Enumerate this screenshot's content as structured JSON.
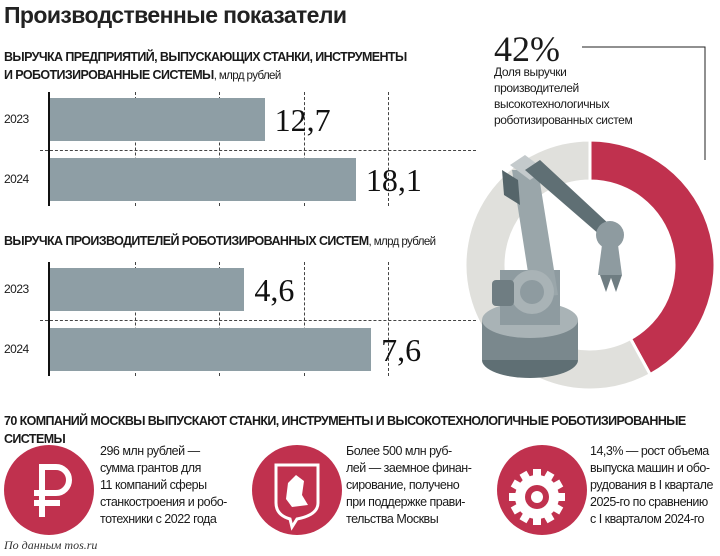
{
  "title": "Производственные показатели",
  "chart_data": [
    {
      "type": "bar",
      "orientation": "horizontal",
      "title": "ВЫРУЧКА ПРЕДПРИЯТИЙ, ВЫПУСКАЮЩИХ СТАНКИ, ИНСТРУМЕНТЫ И РОБОТИЗИРОВАННЫЕ СИСТЕМЫ",
      "title_line1": "ВЫРУЧКА ПРЕДПРИЯТИЙ, ВЫПУСКАЮЩИХ СТАНКИ, ИНСТРУМЕНТЫ",
      "title_line2": "И РОБОТИЗИРОВАННЫЕ СИСТЕМЫ",
      "unit": ", млрд рублей",
      "categories": [
        "2023",
        "2024"
      ],
      "values": [
        12.7,
        18.1
      ],
      "labels": [
        "12,7",
        "18,1"
      ],
      "xlim": [
        0,
        20
      ],
      "grid_step": 5,
      "grid": true
    },
    {
      "type": "bar",
      "orientation": "horizontal",
      "title": "ВЫРУЧКА ПРОИЗВОДИТЕЛЕЙ РОБОТИЗИРОВАННЫХ СИСТЕМ",
      "unit": ", млрд рублей",
      "categories": [
        "2023",
        "2024"
      ],
      "values": [
        4.6,
        7.6
      ],
      "labels": [
        "4,6",
        "7,6"
      ],
      "xlim": [
        0,
        8
      ],
      "grid_step": 2,
      "grid": true
    },
    {
      "type": "pie",
      "style": "donut",
      "value_label": "42%",
      "caption": "Доля выручки производителей высокотехнологичных роботизированных систем",
      "caption_lines": [
        "Доля выручки",
        "производителей",
        "высокотехнологичных",
        "роботизированных систем"
      ],
      "values": [
        42,
        58
      ],
      "colors": [
        "#c0314e",
        "#e0e0dc"
      ]
    }
  ],
  "colors": {
    "accent": "#c0314e",
    "bar": "#8e9ea5",
    "donut_rest": "#e0e0dc"
  },
  "bottom": {
    "heading": "70 КОМПАНИЙ МОСКВЫ ВЫПУСКАЮТ СТАНКИ, ИНСТРУМЕНТЫ И ВЫСОКОТЕХНОЛОГИЧНЫЕ РОБОТИЗИРОВАННЫЕ СИСТЕМЫ",
    "items": [
      {
        "icon": "ruble-icon",
        "lines": [
          "296 млн рублей —",
          "сумма грантов для",
          "11 компаний сферы",
          "станкостроения и робо-",
          "тотехники с 2022 года"
        ]
      },
      {
        "icon": "moscow-coat-of-arms-icon",
        "lines": [
          "Более 500 млн руб-",
          "лей — заемное финан-",
          "сирование, получено",
          "при поддержке прави-",
          "тельства Москвы"
        ]
      },
      {
        "icon": "gear-icon",
        "lines": [
          "14,3% — рост объема",
          "выпуска машин и обо-",
          "рудования в I квартале",
          "2025-го по сравнению",
          "с I кварталом 2024-го"
        ]
      }
    ]
  },
  "source": "По данным mos.ru"
}
